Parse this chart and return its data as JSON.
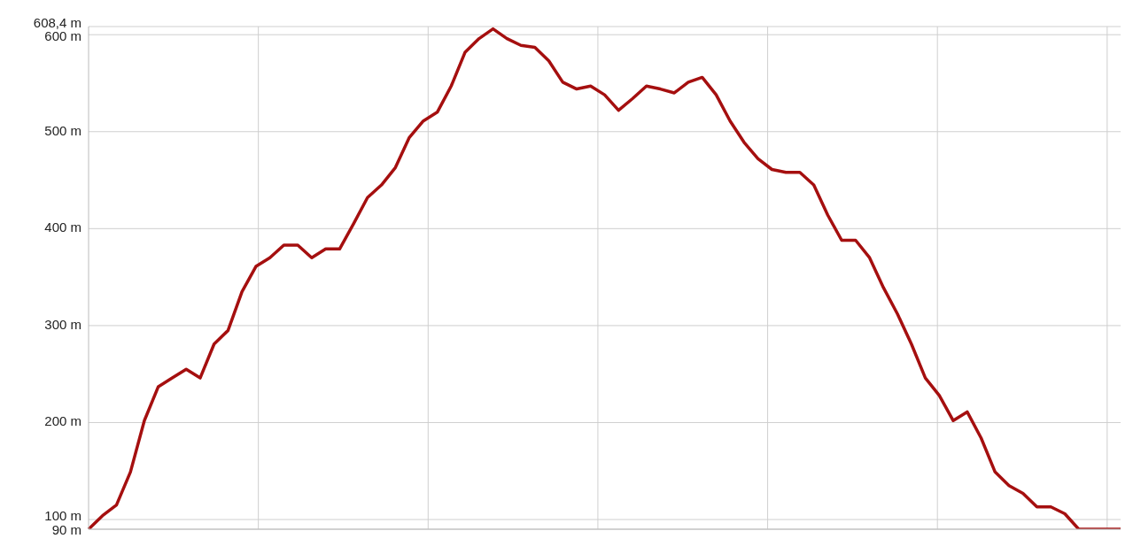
{
  "chart_data": {
    "type": "line",
    "categories": [
      null,
      null,
      null,
      null,
      null,
      null,
      null,
      null,
      null,
      null,
      null,
      null,
      null,
      null,
      null,
      null,
      null,
      null,
      null,
      null,
      null,
      null,
      null,
      null,
      null,
      null,
      null,
      null,
      null,
      null,
      null,
      null,
      null,
      null,
      null,
      null,
      null,
      null,
      null,
      null,
      null,
      null,
      null,
      null,
      null,
      null,
      null,
      null,
      null,
      null,
      null,
      null,
      null,
      null,
      null,
      null,
      null,
      null,
      null,
      null,
      null,
      null,
      null,
      null,
      null,
      null,
      null,
      null,
      null,
      null,
      null,
      null,
      null,
      null,
      null
    ],
    "series": [
      {
        "color": "#a50f0f",
        "values": [
          90,
          104,
          115,
          149,
          202,
          237,
          246,
          255,
          246,
          281,
          295,
          335,
          361,
          370,
          383,
          383,
          370,
          379,
          379,
          405,
          432,
          445,
          463,
          494,
          511,
          520,
          547,
          582,
          596,
          606,
          596,
          589,
          587,
          573,
          551,
          544,
          547,
          538,
          522,
          534,
          547,
          544,
          540,
          551,
          556,
          538,
          511,
          489,
          472,
          461,
          458,
          458,
          445,
          414,
          388,
          388,
          370,
          339,
          312,
          281,
          246,
          228,
          202,
          211,
          184,
          149,
          135,
          127,
          113,
          113,
          106,
          90,
          90,
          90,
          90
        ]
      }
    ],
    "ylim": [
      90,
      608.4
    ],
    "yticks": [
      {
        "value": 90,
        "label": "90 m"
      },
      {
        "value": 100,
        "label": "100 m"
      },
      {
        "value": 200,
        "label": "200 m"
      },
      {
        "value": 300,
        "label": "300 m"
      },
      {
        "value": 400,
        "label": "400 m"
      },
      {
        "value": 500,
        "label": "500 m"
      },
      {
        "value": 600,
        "label": "600 m"
      },
      {
        "value": 608.4,
        "label": "608,4 m"
      }
    ],
    "grid": true,
    "marker": "none",
    "line_style": "solid",
    "tick_labels": "y"
  }
}
